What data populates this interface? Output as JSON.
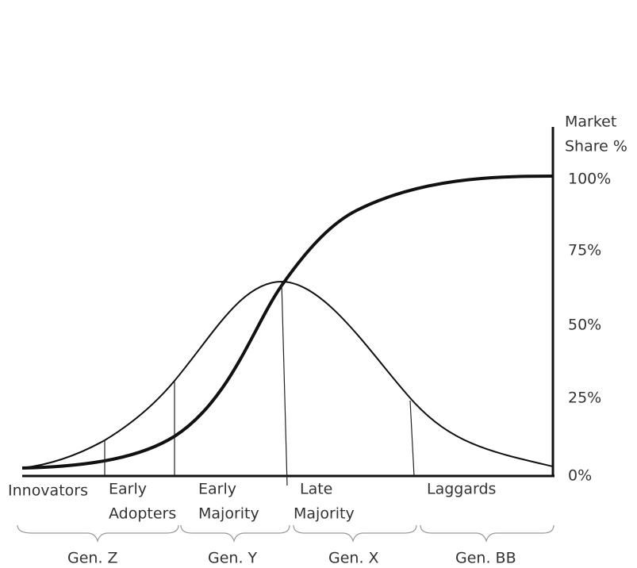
{
  "axis": {
    "title_lines": [
      "Market",
      "Share %"
    ],
    "ticks": [
      "100%",
      "75%",
      "50%",
      "25%",
      "0%"
    ]
  },
  "segments": [
    {
      "lines": [
        "Innovators"
      ]
    },
    {
      "lines": [
        "Early",
        "Adopters"
      ]
    },
    {
      "lines": [
        "Early",
        "Majority"
      ]
    },
    {
      "lines": [
        "Late",
        "Majority"
      ]
    },
    {
      "lines": [
        "Laggards"
      ]
    }
  ],
  "generations": [
    "Gen. Z",
    "Gen. Y",
    "Gen. X",
    "Gen. BB"
  ]
}
